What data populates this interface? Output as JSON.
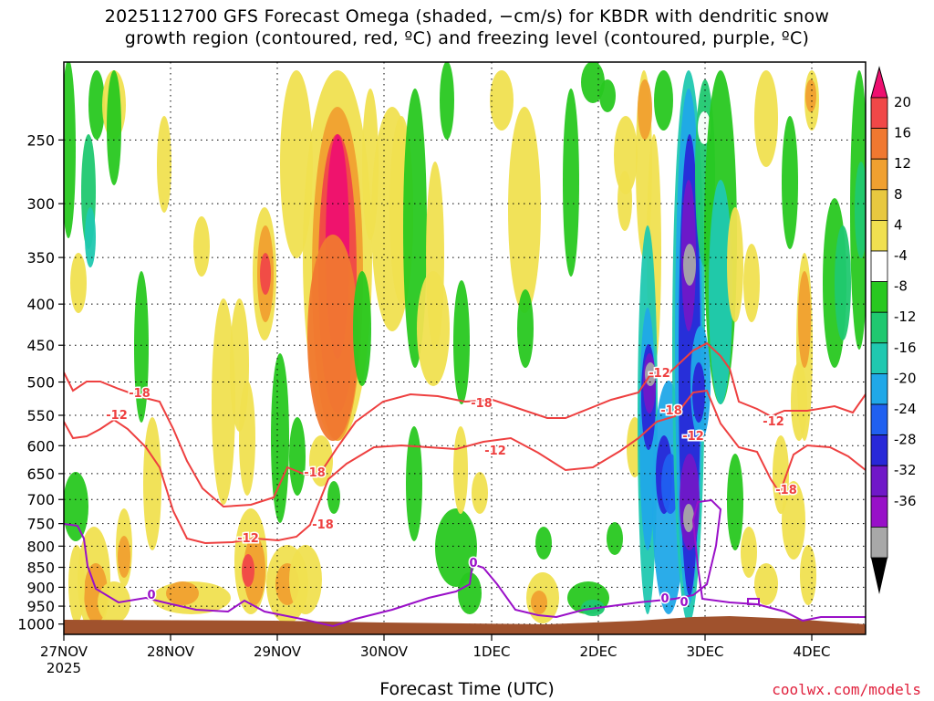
{
  "title": {
    "line1": "2025112700 GFS Forecast Omega (shaded, −cm/s) for KBDR with dendritic snow",
    "line2": "growth region (contoured, red, ºC) and freezing level (contoured, purple, ºC)"
  },
  "xlabel": "Forecast Time (UTC)",
  "credit": "coolwx.com/models",
  "colors": {
    "snow_growth_contour": "#ee4040",
    "freezing_contour": "#9a10c8",
    "ground": "#a0522d",
    "grid": "#000000"
  },
  "chart_data": {
    "type": "heatmap",
    "variable": "Omega (shaded, -cm/s)",
    "y_axis": {
      "label": "",
      "scale": "log-pressure (hPa), inverted",
      "ticks": [
        250,
        300,
        350,
        400,
        450,
        500,
        550,
        600,
        650,
        700,
        750,
        800,
        850,
        900,
        950,
        1000
      ]
    },
    "x_axis": {
      "label": "Forecast Time (UTC)",
      "ticks": [
        {
          "label": "27NOV",
          "sub": "2025"
        },
        {
          "label": "28NOV",
          "sub": ""
        },
        {
          "label": "29NOV",
          "sub": ""
        },
        {
          "label": "30NOV",
          "sub": ""
        },
        {
          "label": "1DEC",
          "sub": ""
        },
        {
          "label": "2DEC",
          "sub": ""
        },
        {
          "label": "3DEC",
          "sub": ""
        },
        {
          "label": "4DEC",
          "sub": ""
        }
      ]
    },
    "colorbar": {
      "ticks": [
        20,
        16,
        12,
        8,
        4,
        -4,
        -8,
        -12,
        -16,
        -20,
        -24,
        -28,
        -32,
        -36
      ],
      "colors": [
        "#ee1070",
        "#f04848",
        "#f07830",
        "#f0a030",
        "#e8c840",
        "#f0e050",
        "#ffffff",
        "#28c820",
        "#20c870",
        "#20c8b0",
        "#20a8e8",
        "#2060f0",
        "#2828d8",
        "#7018c8",
        "#9810c8",
        "#a8a8a8",
        "#000000"
      ]
    },
    "contours": {
      "snow_growth_labels": [
        "-18",
        "-12",
        "-18",
        "-18",
        "-12",
        "-18",
        "-12",
        "-18",
        "-12",
        "-18",
        "-12",
        "-12"
      ],
      "freezing_labels": [
        "0",
        "0",
        "0",
        "0"
      ]
    },
    "grid": true
  }
}
